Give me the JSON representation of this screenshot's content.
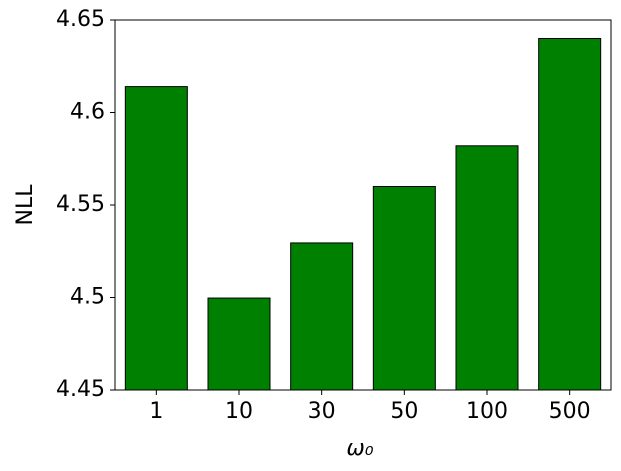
{
  "chart_data": {
    "type": "bar",
    "x_label": "ω₀",
    "y_label": "NLL",
    "categories": [
      "1",
      "10",
      "30",
      "50",
      "100",
      "500"
    ],
    "values": [
      4.614,
      4.4997,
      4.5295,
      4.56,
      4.582,
      4.64
    ],
    "color": "#008000",
    "edge_color": "#000000",
    "ylim": [
      4.45,
      4.65
    ],
    "yticks": [
      4.45,
      4.5,
      4.55,
      4.6,
      4.65
    ],
    "grid": false
  }
}
